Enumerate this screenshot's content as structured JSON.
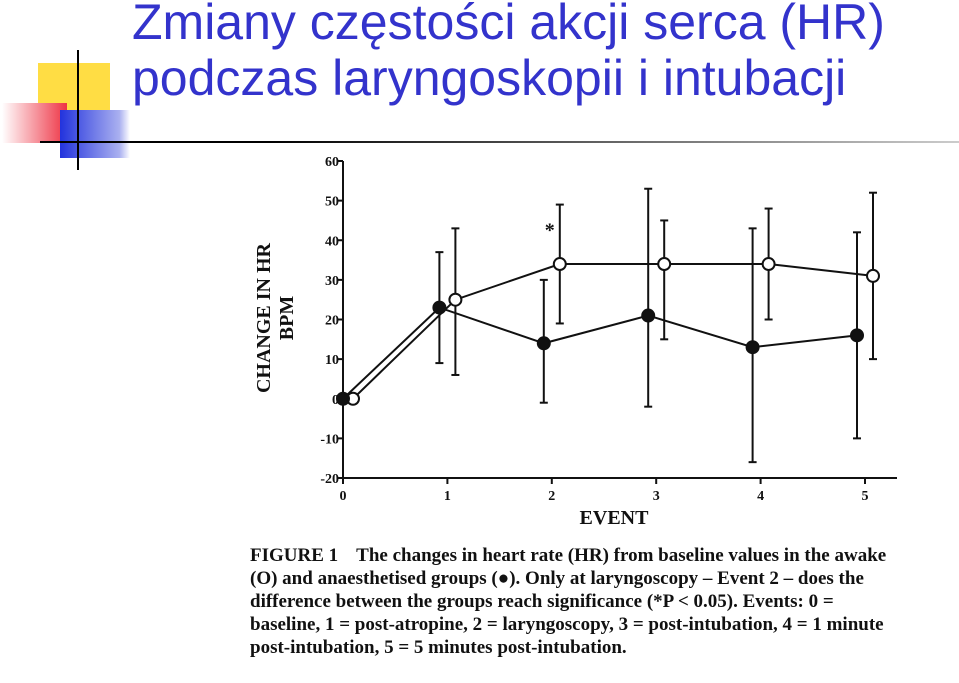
{
  "slide": {
    "title_line1": "Zmiany częstości akcji serca (HR)",
    "title_line2": "podczas laryngoskopii i intubacji"
  },
  "colors": {
    "title": "#3333cc",
    "deco_yellow": "#ffdd44",
    "deco_red": "#ee3344",
    "deco_blue": "#2233dd"
  },
  "chart_data": {
    "type": "line",
    "x": [
      0,
      1,
      2,
      3,
      4,
      5
    ],
    "xlabel": "EVENT",
    "ylabel_line1": "CHANGE IN HR",
    "ylabel_line2": "BPM",
    "ylim": [
      -20,
      60
    ],
    "xlim": [
      0,
      5
    ],
    "yticks": [
      60,
      50,
      40,
      30,
      20,
      10,
      0,
      -10,
      -20
    ],
    "xticks": [
      0,
      1,
      2,
      3,
      4,
      5
    ],
    "grid": false,
    "series": [
      {
        "marker": "open-circle",
        "values": [
          0,
          25,
          34,
          34,
          34,
          31
        ],
        "err_high": [
          0,
          43,
          49,
          45,
          48,
          52
        ],
        "err_low": [
          0,
          6,
          19,
          15,
          20,
          10
        ]
      },
      {
        "marker": "filled-circle",
        "values": [
          0,
          23,
          14,
          21,
          13,
          16
        ],
        "err_high": [
          0,
          37,
          30,
          53,
          43,
          42
        ],
        "err_low": [
          0,
          9,
          -1,
          -2,
          -16,
          -10
        ]
      }
    ],
    "annotations": [
      {
        "text": "*",
        "x": 2,
        "y": 41
      }
    ]
  },
  "caption": {
    "figure_label": "FIGURE 1",
    "text": "The changes in heart rate (HR) from baseline values in the awake (O) and anaesthetised groups (●). Only at laryngoscopy – Event 2 – does the difference between the groups reach significance (*P < 0.05). Events: 0 = baseline, 1 = post-atropine, 2 = laryngoscopy, 3 = post-intubation, 4 = 1 minute post-intubation, 5 = 5 minutes post-intubation."
  }
}
